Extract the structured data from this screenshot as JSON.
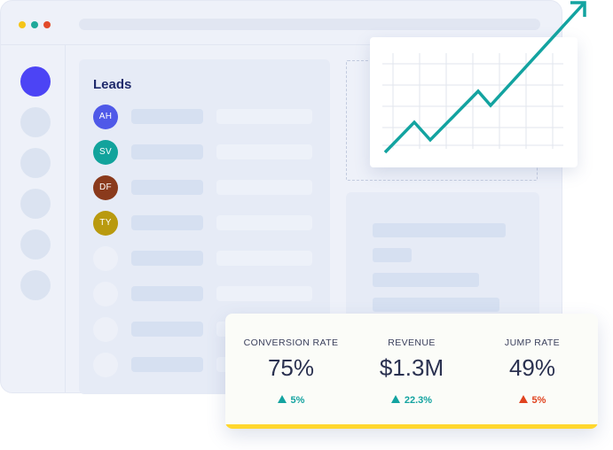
{
  "window": {
    "dots": [
      "#f5c518",
      "#1fa89a",
      "#e24b2a"
    ]
  },
  "sidebar": {
    "items": [
      {
        "name": "sidebar-item-1",
        "active": true
      },
      {
        "name": "sidebar-item-2",
        "active": false
      },
      {
        "name": "sidebar-item-3",
        "active": false
      },
      {
        "name": "sidebar-item-4",
        "active": false
      },
      {
        "name": "sidebar-item-5",
        "active": false
      },
      {
        "name": "sidebar-item-6",
        "active": false
      }
    ]
  },
  "leads": {
    "title": "Leads",
    "rows": [
      {
        "initials": "AH",
        "color": "#4f59e8"
      },
      {
        "initials": "SV",
        "color": "#12a39c"
      },
      {
        "initials": "DF",
        "color": "#8a3a1c"
      },
      {
        "initials": "TY",
        "color": "#b99a0f"
      },
      {
        "initials": "",
        "color": ""
      },
      {
        "initials": "",
        "color": ""
      },
      {
        "initials": "",
        "color": ""
      },
      {
        "initials": "",
        "color": ""
      }
    ]
  },
  "trend_chart": {
    "icon": "trend-up-arrow-icon",
    "line_color": "#13a3a0",
    "grid_color": "#e2e5ee"
  },
  "stats": {
    "items": [
      {
        "label": "CONVERSION RATE",
        "value": "75%",
        "delta": "5%",
        "direction": "up",
        "color": "#13a3a0"
      },
      {
        "label": "REVENUE",
        "value": "$1.3M",
        "delta": "22.3%",
        "direction": "up",
        "color": "#13a3a0"
      },
      {
        "label": "JUMP RATE",
        "value": "49%",
        "delta": "5%",
        "direction": "up",
        "color": "#e0431f"
      }
    ],
    "accent": "#ffd72e"
  }
}
